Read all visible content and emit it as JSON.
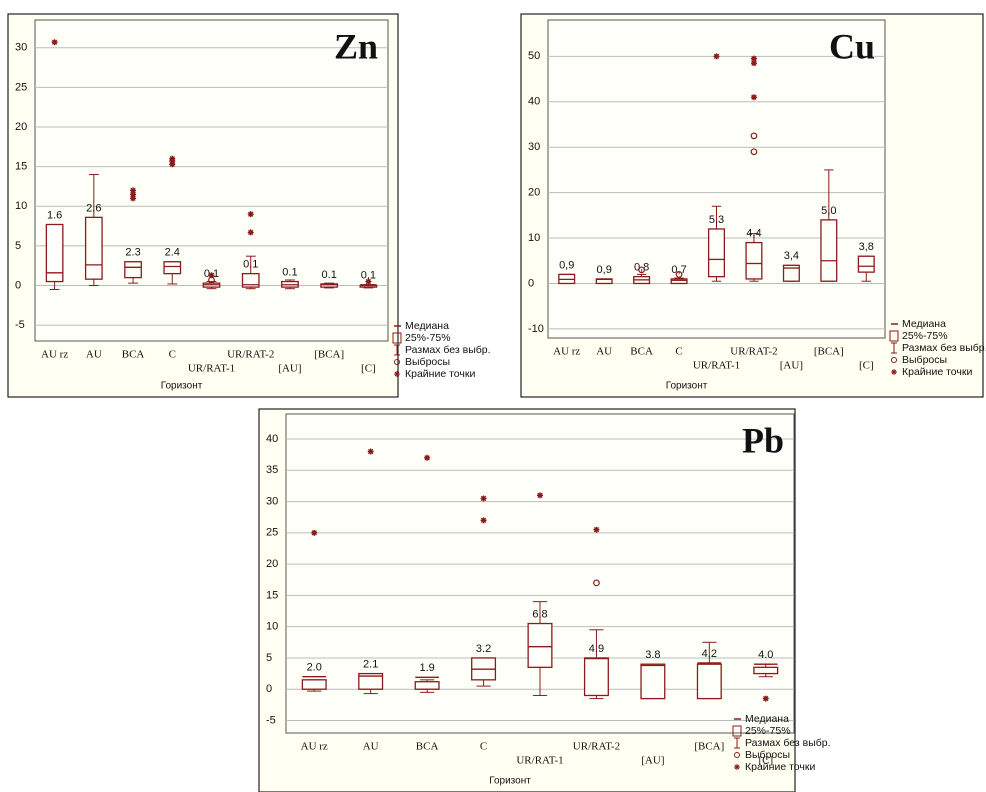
{
  "chart_data": [
    {
      "type": "box",
      "title": "Zn",
      "xlabel": "Горизонт",
      "color": "#8b1a1a",
      "grid": true,
      "categories": [
        "AU rz",
        "AU",
        "BCA",
        "C",
        "UR/RAT-1",
        "UR/RAT-2",
        "[AU]",
        "[BCA]",
        "[C]"
      ],
      "ylim": [
        -7,
        33.5
      ],
      "yticks": [
        -5,
        0,
        5,
        10,
        15,
        20,
        25,
        30
      ],
      "legend": [
        "Медиана",
        "25%-75%",
        "Размах без выбр.",
        "Выбросы",
        "Крайние точки"
      ],
      "median": [
        1.6,
        2.6,
        2.3,
        2.4,
        0.1,
        0.1,
        0.1,
        0.1,
        0.1
      ],
      "q1": [
        0.5,
        0.8,
        1,
        1.5,
        -0.2,
        -0.2,
        -0.2,
        -0.2,
        -0.2
      ],
      "q3": [
        7.7,
        8.6,
        3,
        3,
        0.3,
        1.5,
        0.5,
        0.2,
        0
      ],
      "whisker_low": [
        -0.5,
        0,
        0.3,
        0.2,
        -0.4,
        -0.4,
        -0.4,
        -0.3,
        -0.3
      ],
      "whisker_high": [
        7.7,
        14,
        3,
        3,
        0.5,
        3.7,
        0.7,
        0.3,
        0.1
      ],
      "outliers": [
        [],
        [],
        [],
        [],
        [
          0.7
        ],
        [],
        [],
        [],
        []
      ],
      "extremes": [
        [
          30.7
        ],
        [],
        [
          11,
          11.5,
          12
        ],
        [
          15.3,
          15.7,
          16
        ],
        [
          1.3
        ],
        [
          6.7,
          9
        ],
        [],
        [],
        [
          0.5
        ]
      ]
    },
    {
      "type": "box",
      "title": "Cu",
      "xlabel": "Горизонт",
      "color": "#8b1a1a",
      "grid": true,
      "categories": [
        "AU rz",
        "AU",
        "BCA",
        "C",
        "UR/RAT-1",
        "UR/RAT-2",
        "[AU]",
        "[BCA]",
        "[C]"
      ],
      "ylim": [
        -12,
        58
      ],
      "yticks": [
        -10,
        0,
        10,
        20,
        30,
        40,
        50
      ],
      "legend": [
        "Медиана",
        "25%-75%",
        "Размах без выбр.",
        "Выбросы",
        "Крайние точки"
      ],
      "median": [
        0.9,
        0.9,
        0.8,
        0.7,
        5.3,
        4.4,
        3.4,
        5.0,
        3.8
      ],
      "value_labels": [
        "0,9",
        "0,9",
        "0,8",
        "0,7",
        "5,3",
        "4,4",
        "3,4",
        "5,0",
        "3,8"
      ],
      "q1": [
        0,
        0,
        0,
        0,
        1.5,
        1,
        0.5,
        0.5,
        2.5
      ],
      "q3": [
        2,
        1,
        1.5,
        1,
        12,
        9,
        4,
        14,
        6
      ],
      "whisker_low": [
        0,
        0,
        0,
        0,
        0.5,
        0.5,
        0.5,
        0.5,
        0.5
      ],
      "whisker_high": [
        2,
        1,
        2,
        1.2,
        17,
        11,
        4,
        25,
        6
      ],
      "outliers": [
        [],
        [],
        [
          3
        ],
        [
          2
        ],
        [],
        [
          29,
          32.5
        ],
        [],
        [],
        []
      ],
      "extremes": [
        [],
        [],
        [],
        [],
        [
          50
        ],
        [
          41,
          48.5,
          49.5
        ],
        [],
        [],
        []
      ]
    },
    {
      "type": "box",
      "title": "Pb",
      "xlabel": "Горизонт",
      "color": "#8b1a1a",
      "grid": true,
      "categories": [
        "AU rz",
        "AU",
        "BCA",
        "C",
        "UR/RAT-1",
        "UR/RAT-2",
        "[AU]",
        "[BCA]",
        "[C]"
      ],
      "ylim": [
        -7,
        44
      ],
      "yticks": [
        -5,
        0,
        5,
        10,
        15,
        20,
        25,
        30,
        35,
        40
      ],
      "legend": [
        "Медиана",
        "25%-75%",
        "Размах без выбр.",
        "Выбросы",
        "Крайние точки"
      ],
      "median": [
        2.0,
        2.1,
        1.9,
        3.2,
        6.8,
        4.9,
        3.8,
        4.2,
        4.0
      ],
      "value_labels": [
        "2.0",
        "2.1",
        "1.9",
        "3.2",
        "6.8",
        "4.9",
        "3.8",
        "4.2",
        "4.0"
      ],
      "q1": [
        0,
        0,
        0,
        1.5,
        3.5,
        -1,
        -1.5,
        -1.5,
        2.5
      ],
      "q3": [
        1.5,
        2.5,
        1.2,
        5,
        10.5,
        5,
        4,
        4,
        3.5
      ],
      "whisker_low": [
        -0.3,
        -0.7,
        -0.5,
        0.5,
        -1,
        -1.5,
        -1.5,
        -1.5,
        2
      ],
      "whisker_high": [
        1.5,
        2.5,
        1.5,
        5,
        14,
        9.5,
        4,
        7.5,
        4
      ],
      "outliers": [
        [],
        [],
        [],
        [],
        [],
        [
          17
        ],
        [],
        [],
        []
      ],
      "extremes": [
        [
          25
        ],
        [
          38
        ],
        [
          37
        ],
        [
          27,
          30.5
        ],
        [
          31
        ],
        [
          25.5
        ],
        [],
        [],
        [
          -1.5
        ]
      ]
    }
  ]
}
